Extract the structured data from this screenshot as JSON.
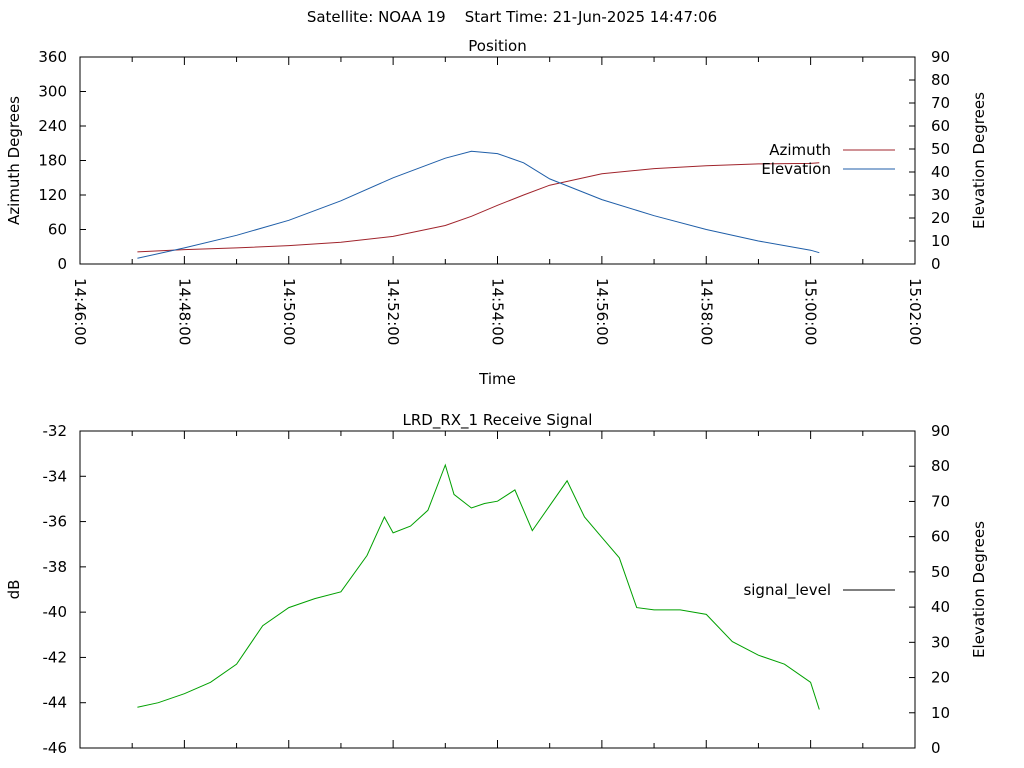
{
  "header": {
    "text": "Satellite: NOAA 19    Start Time: 21-Jun-2025 14:47:06"
  },
  "chart_data": [
    {
      "type": "line",
      "title": "Position",
      "xlabel": "Time",
      "ylabel": "Azimuth Degrees",
      "y2label": "Elevation Degrees",
      "xlim": [
        "14:46:00",
        "15:02:00"
      ],
      "ylim": [
        0,
        360
      ],
      "y2lim": [
        0,
        90
      ],
      "yticks": [
        "0",
        "60",
        "120",
        "180",
        "240",
        "300",
        "360"
      ],
      "y2ticks": [
        "0",
        "10",
        "20",
        "30",
        "40",
        "50",
        "60",
        "70",
        "80",
        "90"
      ],
      "xticks": [
        "14:46:00",
        "14:48:00",
        "14:50:00",
        "14:52:00",
        "14:54:00",
        "14:56:00",
        "14:58:00",
        "15:00:00",
        "15:02:00"
      ],
      "legend_position": "right",
      "grid": false,
      "series": [
        {
          "name": "Azimuth",
          "axis": "left",
          "color": "#a0242c",
          "x": [
            "14:47:06",
            "14:48:00",
            "14:49:00",
            "14:50:00",
            "14:51:00",
            "14:52:00",
            "14:53:00",
            "14:53:30",
            "14:54:00",
            "14:54:30",
            "14:55:00",
            "14:56:00",
            "14:57:00",
            "14:58:00",
            "14:59:00",
            "15:00:00",
            "15:00:10"
          ],
          "values": [
            21,
            25,
            28,
            32,
            38,
            48,
            67,
            83,
            102,
            120,
            137,
            157,
            166,
            171,
            174,
            175,
            176
          ]
        },
        {
          "name": "Elevation",
          "axis": "right",
          "color": "#1f5ea8",
          "x": [
            "14:47:06",
            "14:48:00",
            "14:49:00",
            "14:50:00",
            "14:51:00",
            "14:52:00",
            "14:53:00",
            "14:53:30",
            "14:54:00",
            "14:54:30",
            "14:55:00",
            "14:56:00",
            "14:57:00",
            "14:58:00",
            "14:59:00",
            "15:00:00",
            "15:00:10"
          ],
          "values": [
            2.5,
            7.0,
            12.5,
            19.0,
            27.5,
            37.5,
            46.0,
            49.0,
            48.0,
            44.0,
            37.0,
            28.0,
            21.0,
            15.0,
            10.0,
            6.0,
            4.9
          ]
        }
      ]
    },
    {
      "type": "line",
      "title": "LRD_RX_1 Receive Signal",
      "ylabel": "dB",
      "y2label": "Elevation Degrees",
      "xlim": [
        "14:46:00",
        "15:02:00"
      ],
      "ylim": [
        -46,
        -32
      ],
      "y2lim": [
        0,
        90
      ],
      "yticks": [
        "-46",
        "-44",
        "-42",
        "-40",
        "-38",
        "-36",
        "-34",
        "-32"
      ],
      "y2ticks": [
        "0",
        "10",
        "20",
        "30",
        "40",
        "50",
        "60",
        "70",
        "80",
        "90"
      ],
      "legend_position": "right",
      "grid": false,
      "series": [
        {
          "name": "signal_level",
          "axis": "left",
          "color": "#00a000",
          "x": [
            "14:47:06",
            "14:47:30",
            "14:48:00",
            "14:48:30",
            "14:49:00",
            "14:49:30",
            "14:50:00",
            "14:50:30",
            "14:51:00",
            "14:51:30",
            "14:51:50",
            "14:52:00",
            "14:52:20",
            "14:52:40",
            "14:53:00",
            "14:53:10",
            "14:53:30",
            "14:53:45",
            "14:54:00",
            "14:54:20",
            "14:54:40",
            "14:55:00",
            "14:55:20",
            "14:55:40",
            "14:56:00",
            "14:56:20",
            "14:56:40",
            "14:57:00",
            "14:57:30",
            "14:58:00",
            "14:58:30",
            "14:59:00",
            "14:59:30",
            "15:00:00",
            "15:00:10"
          ],
          "values": [
            -44.2,
            -44.0,
            -43.6,
            -43.1,
            -42.3,
            -40.6,
            -39.8,
            -39.4,
            -39.1,
            -37.5,
            -35.8,
            -36.5,
            -36.2,
            -35.5,
            -33.5,
            -34.8,
            -35.4,
            -35.2,
            -35.1,
            -34.6,
            -36.4,
            -35.3,
            -34.2,
            -35.8,
            -36.7,
            -37.6,
            -39.8,
            -39.9,
            -39.9,
            -40.1,
            -41.3,
            -41.9,
            -42.3,
            -43.1,
            -44.3
          ]
        }
      ]
    }
  ]
}
